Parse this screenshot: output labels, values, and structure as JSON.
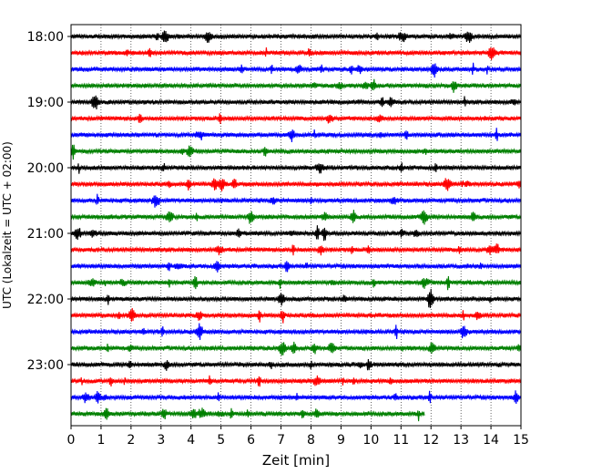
{
  "chart_data": {
    "type": "line",
    "title": "",
    "xlabel": "Zeit  [min]",
    "ylabel": "UTC (Lokalzeit = UTC + 02:00)",
    "xlim": [
      0,
      15
    ],
    "x_ticks": [
      "0",
      "1",
      "2",
      "3",
      "4",
      "5",
      "6",
      "7",
      "8",
      "9",
      "10",
      "11",
      "12",
      "13",
      "14",
      "15"
    ],
    "y_tick_labels": [
      "18:00",
      "19:00",
      "20:00",
      "21:00",
      "22:00",
      "23:00"
    ],
    "grid": "vertical dotted",
    "trace_colors": [
      "#000000",
      "#ff0000",
      "#0000ff",
      "#008000"
    ],
    "traces": [
      {
        "start": "18:00",
        "end_min": 15
      },
      {
        "start": "18:15",
        "end_min": 15
      },
      {
        "start": "18:30",
        "end_min": 15
      },
      {
        "start": "18:45",
        "end_min": 15
      },
      {
        "start": "19:00",
        "end_min": 15
      },
      {
        "start": "19:15",
        "end_min": 15
      },
      {
        "start": "19:30",
        "end_min": 15
      },
      {
        "start": "19:45",
        "end_min": 15
      },
      {
        "start": "20:00",
        "end_min": 15
      },
      {
        "start": "20:15",
        "end_min": 15
      },
      {
        "start": "20:30",
        "end_min": 15
      },
      {
        "start": "20:45",
        "end_min": 15
      },
      {
        "start": "21:00",
        "end_min": 15
      },
      {
        "start": "21:15",
        "end_min": 15
      },
      {
        "start": "21:30",
        "end_min": 15
      },
      {
        "start": "21:45",
        "end_min": 15
      },
      {
        "start": "22:00",
        "end_min": 15
      },
      {
        "start": "22:15",
        "end_min": 15
      },
      {
        "start": "22:30",
        "end_min": 15
      },
      {
        "start": "22:45",
        "end_min": 15
      },
      {
        "start": "23:00",
        "end_min": 15
      },
      {
        "start": "23:15",
        "end_min": 15
      },
      {
        "start": "23:30",
        "end_min": 15
      },
      {
        "start": "23:45",
        "end_min": 11.8
      }
    ]
  }
}
